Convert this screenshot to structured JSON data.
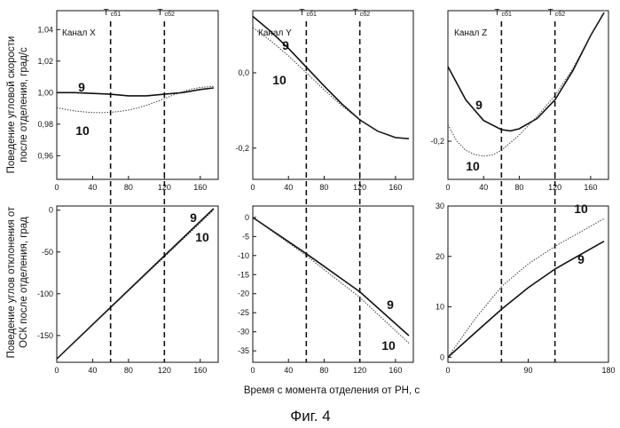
{
  "figure_caption": "Фиг. 4",
  "xlabel": "Время с момента отделения от РН, с",
  "ylabel_rows": [
    [
      "Поведение угловой скорости",
      "после отделения, град/с"
    ],
    [
      "Поведение углов отклонения от",
      "ОСК после отделения, град"
    ]
  ],
  "markers": [
    {
      "main": "T",
      "sub": "сб1",
      "x": 60
    },
    {
      "main": "T",
      "sub": "сб2",
      "x": 120
    }
  ],
  "chart_data": [
    {
      "type": "line",
      "channel": "Канал X",
      "xlim": [
        0,
        180
      ],
      "ylim": [
        0.945,
        1.052
      ],
      "xticks": [
        0,
        40,
        80,
        120,
        160
      ],
      "xtick_labels": [
        "0",
        "40",
        "80",
        "120",
        "160"
      ],
      "yticks": [
        0.96,
        0.98,
        1.0,
        1.02,
        1.04
      ],
      "ytick_labels": [
        "0,96",
        "0,98",
        "1,00",
        "1,02",
        "1,04"
      ],
      "series": [
        {
          "name": "9",
          "style": "solid",
          "x": [
            0,
            20,
            40,
            60,
            80,
            100,
            120,
            140,
            160,
            175
          ],
          "y": [
            1.0,
            1.0,
            0.9995,
            0.999,
            0.998,
            0.998,
            0.999,
            1.0,
            1.002,
            1.003
          ]
        },
        {
          "name": "10",
          "style": "dotted",
          "x": [
            0,
            10,
            20,
            30,
            40,
            50,
            60,
            70,
            80,
            90,
            100,
            110,
            120,
            130,
            140,
            150,
            160,
            175
          ],
          "y": [
            0.9905,
            0.9893,
            0.9884,
            0.9878,
            0.9874,
            0.9873,
            0.9875,
            0.9881,
            0.989,
            0.9903,
            0.992,
            0.994,
            0.9962,
            0.9985,
            1.0005,
            1.0022,
            1.0033,
            1.004
          ]
        }
      ]
    },
    {
      "type": "line",
      "channel": "Канал Y",
      "xlim": [
        0,
        180
      ],
      "ylim": [
        -0.283,
        0.165
      ],
      "xticks": [
        0,
        40,
        80,
        120,
        160
      ],
      "xtick_labels": [
        "0",
        "40",
        "80",
        "120",
        "160"
      ],
      "yticks": [
        -0.2,
        0.0
      ],
      "ytick_labels": [
        "-0,2",
        "0,0"
      ],
      "series": [
        {
          "name": "9",
          "style": "solid",
          "x": [
            0,
            20,
            40,
            60,
            80,
            100,
            120,
            140,
            160,
            175
          ],
          "y": [
            0.15,
            0.11,
            0.065,
            0.015,
            -0.035,
            -0.083,
            -0.125,
            -0.155,
            -0.172,
            -0.175
          ]
        },
        {
          "name": "10",
          "style": "dotted",
          "x": [
            0,
            20,
            40,
            60,
            80,
            100,
            120,
            140,
            160,
            175
          ],
          "y": [
            0.12,
            0.085,
            0.045,
            0.0,
            -0.045,
            -0.088,
            -0.125,
            -0.155,
            -0.172,
            -0.175
          ]
        }
      ]
    },
    {
      "type": "line",
      "channel": "Канал Z",
      "xlim": [
        0,
        180
      ],
      "ylim": [
        -0.292,
        0.115
      ],
      "xticks": [
        0,
        40,
        80,
        120,
        160
      ],
      "xtick_labels": [
        "0",
        "40",
        "80",
        "120",
        "160"
      ],
      "yticks": [
        -0.2
      ],
      "ytick_labels": [
        "-0,2"
      ],
      "series": [
        {
          "name": "9",
          "style": "solid",
          "x": [
            0,
            20,
            40,
            60,
            70,
            80,
            100,
            120,
            140,
            160,
            175
          ],
          "y": [
            -0.02,
            -0.1,
            -0.15,
            -0.172,
            -0.175,
            -0.17,
            -0.145,
            -0.1,
            -0.03,
            0.055,
            0.11
          ]
        },
        {
          "name": "10",
          "style": "dotted",
          "x": [
            0,
            10,
            20,
            30,
            40,
            50,
            60,
            80,
            100,
            120,
            140,
            160,
            175
          ],
          "y": [
            -0.16,
            -0.2,
            -0.222,
            -0.232,
            -0.236,
            -0.233,
            -0.222,
            -0.185,
            -0.14,
            -0.09,
            -0.025,
            0.055,
            0.11
          ]
        }
      ]
    },
    {
      "type": "line",
      "channel": "",
      "xlim": [
        0,
        180
      ],
      "ylim": [
        -182,
        5
      ],
      "xticks": [
        0,
        40,
        80,
        120,
        160
      ],
      "xtick_labels": [
        "0",
        "40",
        "80",
        "120",
        "160"
      ],
      "yticks": [
        -150,
        -100,
        -50,
        0
      ],
      "ytick_labels": [
        "-150",
        "-100",
        "-50",
        "0"
      ],
      "series": [
        {
          "name": "9",
          "style": "solid",
          "x": [
            0,
            175
          ],
          "y": [
            -178,
            2
          ]
        },
        {
          "name": "10",
          "style": "dotted",
          "x": [
            0,
            175
          ],
          "y": [
            -178,
            0
          ]
        }
      ]
    },
    {
      "type": "line",
      "channel": "",
      "xlim": [
        0,
        180
      ],
      "ylim": [
        -38,
        3
      ],
      "xticks": [
        0,
        40,
        80,
        120,
        160
      ],
      "xtick_labels": [
        "0",
        "40",
        "80",
        "120",
        "160"
      ],
      "yticks": [
        -35,
        -30,
        -25,
        -20,
        -15,
        -10,
        -5,
        0
      ],
      "ytick_labels": [
        "-35",
        "-30",
        "-25",
        "-20",
        "-15",
        "-10",
        "-5",
        "0"
      ],
      "series": [
        {
          "name": "9",
          "style": "solid",
          "x": [
            0,
            60,
            120,
            175
          ],
          "y": [
            0,
            -9.5,
            -19.5,
            -31
          ]
        },
        {
          "name": "10",
          "style": "dotted",
          "x": [
            0,
            60,
            120,
            175
          ],
          "y": [
            0,
            -10,
            -21,
            -33
          ]
        }
      ]
    },
    {
      "type": "line",
      "channel": "",
      "xlim": [
        0,
        180
      ],
      "ylim": [
        -1,
        30
      ],
      "xticks": [
        0,
        90,
        180
      ],
      "xtick_labels": [
        "0",
        "90",
        "180"
      ],
      "yticks": [
        0,
        10,
        20,
        30
      ],
      "ytick_labels": [
        "0",
        "10",
        "20",
        "30"
      ],
      "series": [
        {
          "name": "9",
          "style": "solid",
          "x": [
            0,
            30,
            60,
            90,
            120,
            150,
            175
          ],
          "y": [
            0,
            4.8,
            9.5,
            13.8,
            17.5,
            20.5,
            23
          ]
        },
        {
          "name": "10",
          "style": "dotted",
          "x": [
            0,
            30,
            60,
            90,
            120,
            150,
            175
          ],
          "y": [
            0,
            7.5,
            14,
            18.5,
            22,
            25,
            27.5
          ]
        }
      ]
    }
  ]
}
